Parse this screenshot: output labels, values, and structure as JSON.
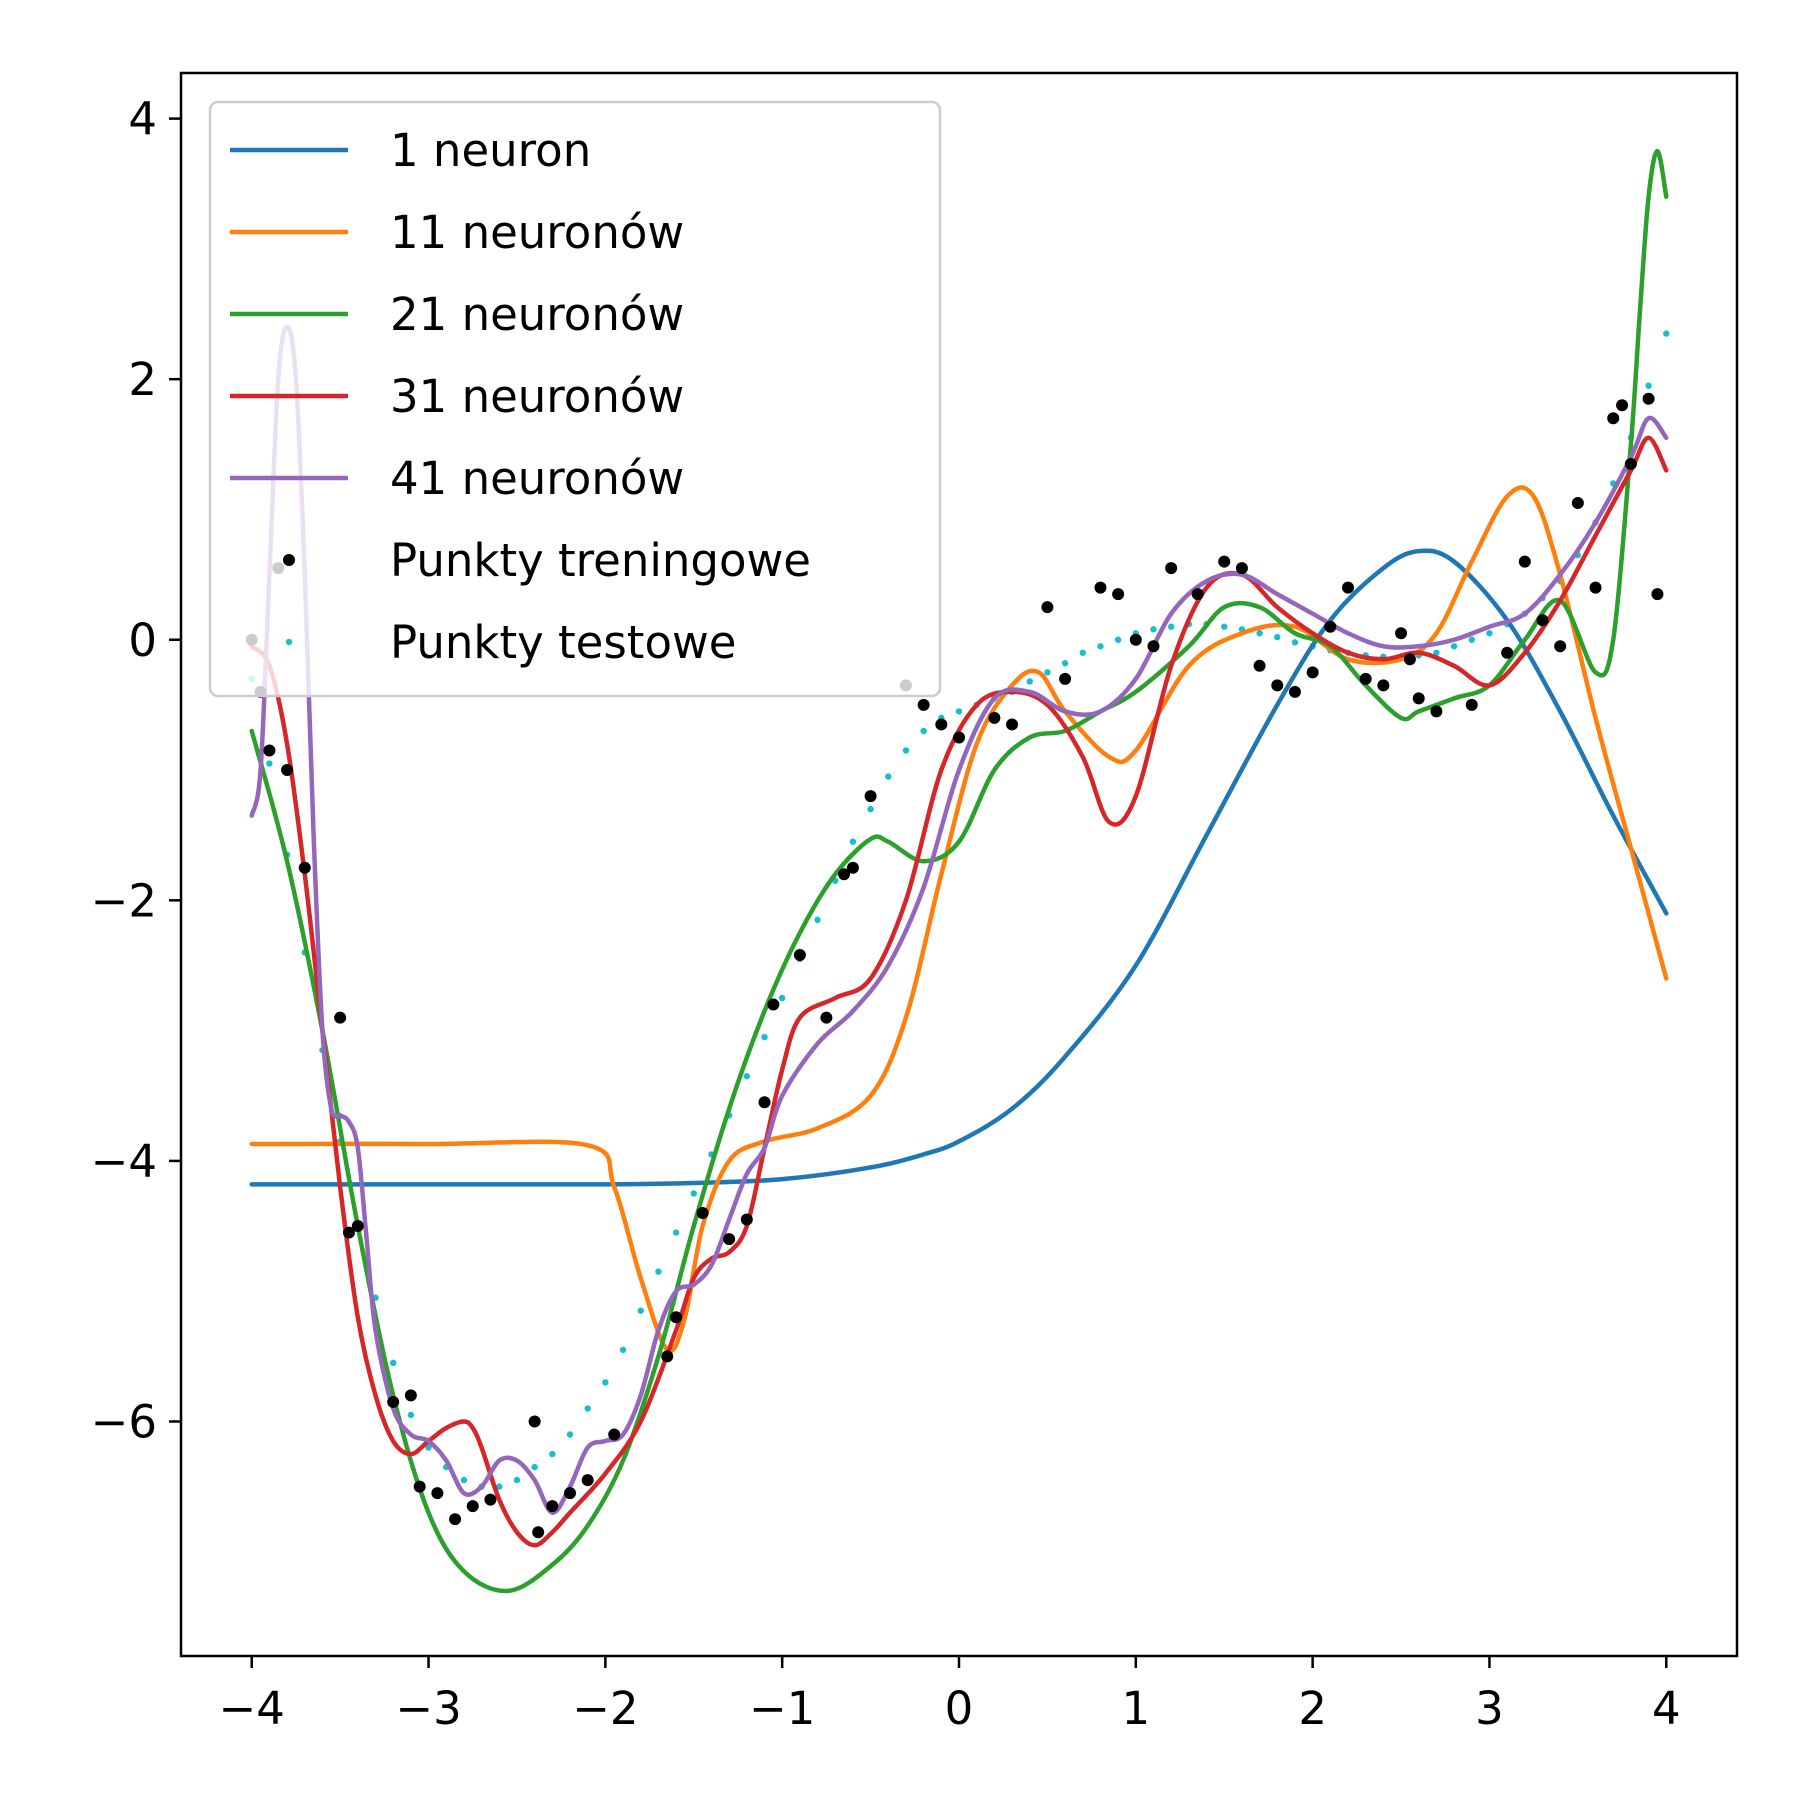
{
  "chart_data": {
    "type": "line",
    "title": "",
    "xlabel": "",
    "ylabel": "",
    "xlim": [
      -4.4,
      4.4
    ],
    "ylim": [
      -7.8,
      4.35
    ],
    "xticks": [
      -4,
      -3,
      -2,
      -1,
      0,
      1,
      2,
      3,
      4
    ],
    "yticks": [
      -6,
      -4,
      -2,
      0,
      2,
      4
    ],
    "xtick_labels": [
      "−4",
      "−3",
      "−2",
      "−1",
      "0",
      "1",
      "2",
      "3",
      "4"
    ],
    "ytick_labels": [
      "−6",
      "−4",
      "−2",
      "0",
      "2",
      "4"
    ],
    "grid": false,
    "legend_position": "top-left",
    "series": [
      {
        "name": "1 neuron",
        "color": "#1f77b4",
        "x": [
          -4.0,
          -3.0,
          -2.0,
          -1.5,
          -1.0,
          -0.5,
          -0.2,
          0.0,
          0.3,
          0.6,
          1.0,
          1.4,
          1.8,
          2.1,
          2.4,
          2.6,
          2.8,
          3.1,
          3.4,
          3.7,
          4.0
        ],
        "y": [
          -4.18,
          -4.18,
          -4.18,
          -4.17,
          -4.14,
          -4.05,
          -3.95,
          -3.85,
          -3.6,
          -3.2,
          -2.5,
          -1.5,
          -0.5,
          0.15,
          0.55,
          0.68,
          0.6,
          0.15,
          -0.55,
          -1.35,
          -2.1
        ]
      },
      {
        "name": "11 neuronów",
        "color": "#ff7f0e",
        "x": [
          -4.0,
          -3.0,
          -2.1,
          -1.95,
          -1.8,
          -1.65,
          -1.55,
          -1.45,
          -1.3,
          -1.1,
          -0.8,
          -0.5,
          -0.3,
          -0.1,
          0.1,
          0.3,
          0.45,
          0.6,
          0.85,
          1.0,
          1.3,
          1.6,
          1.9,
          2.2,
          2.5,
          2.7,
          2.9,
          3.1,
          3.25,
          3.4,
          3.6,
          3.8,
          4.0
        ],
        "y": [
          -3.87,
          -3.87,
          -3.88,
          -4.2,
          -4.9,
          -5.45,
          -5.2,
          -4.5,
          -4.0,
          -3.85,
          -3.75,
          -3.5,
          -2.9,
          -1.8,
          -0.8,
          -0.35,
          -0.25,
          -0.55,
          -0.9,
          -0.85,
          -0.2,
          0.05,
          0.1,
          -0.15,
          -0.15,
          0.05,
          0.6,
          1.1,
          1.1,
          0.5,
          -0.6,
          -1.6,
          -2.6
        ]
      },
      {
        "name": "21 neuronów",
        "color": "#2ca02c",
        "x": [
          -4.0,
          -3.8,
          -3.6,
          -3.4,
          -3.2,
          -3.0,
          -2.8,
          -2.55,
          -2.3,
          -2.1,
          -1.9,
          -1.7,
          -1.5,
          -1.3,
          -1.1,
          -0.9,
          -0.7,
          -0.5,
          -0.4,
          -0.2,
          0.0,
          0.2,
          0.4,
          0.6,
          0.8,
          1.0,
          1.3,
          1.5,
          1.7,
          1.9,
          2.1,
          2.3,
          2.5,
          2.6,
          2.8,
          3.0,
          3.2,
          3.4,
          3.6,
          3.7,
          3.8,
          3.85,
          3.9,
          3.95,
          4.0
        ],
        "y": [
          -0.7,
          -1.7,
          -3.0,
          -4.5,
          -5.8,
          -6.7,
          -7.15,
          -7.3,
          -7.1,
          -6.8,
          -6.3,
          -5.5,
          -4.5,
          -3.6,
          -2.85,
          -2.25,
          -1.8,
          -1.53,
          -1.55,
          -1.7,
          -1.55,
          -1.0,
          -0.75,
          -0.7,
          -0.55,
          -0.4,
          -0.05,
          0.25,
          0.25,
          0.05,
          -0.05,
          -0.35,
          -0.6,
          -0.55,
          -0.45,
          -0.35,
          0.0,
          0.3,
          -0.25,
          0.0,
          1.5,
          2.5,
          3.4,
          3.75,
          3.4
        ]
      },
      {
        "name": "31 neuronów",
        "color": "#d62728",
        "x": [
          -4.0,
          -3.9,
          -3.8,
          -3.7,
          -3.6,
          -3.5,
          -3.4,
          -3.3,
          -3.2,
          -3.1,
          -3.0,
          -2.9,
          -2.8,
          -2.75,
          -2.7,
          -2.6,
          -2.5,
          -2.4,
          -2.3,
          -2.2,
          -2.0,
          -1.8,
          -1.6,
          -1.5,
          -1.4,
          -1.3,
          -1.2,
          -1.1,
          -1.0,
          -0.9,
          -0.7,
          -0.5,
          -0.3,
          -0.1,
          0.1,
          0.3,
          0.5,
          0.7,
          0.85,
          1.0,
          1.2,
          1.4,
          1.6,
          1.8,
          2.0,
          2.2,
          2.4,
          2.6,
          2.8,
          3.0,
          3.2,
          3.4,
          3.6,
          3.8,
          3.9,
          4.0
        ],
        "y": [
          -0.05,
          -0.2,
          -0.8,
          -1.8,
          -3.0,
          -4.2,
          -5.2,
          -5.8,
          -6.15,
          -6.25,
          -6.15,
          -6.05,
          -6.0,
          -6.05,
          -6.2,
          -6.6,
          -6.85,
          -6.95,
          -6.85,
          -6.7,
          -6.4,
          -6.0,
          -5.3,
          -4.9,
          -4.75,
          -4.7,
          -4.5,
          -3.9,
          -3.3,
          -2.9,
          -2.75,
          -2.6,
          -2.0,
          -1.0,
          -0.5,
          -0.4,
          -0.5,
          -0.9,
          -1.4,
          -1.2,
          -0.2,
          0.4,
          0.5,
          0.25,
          0.05,
          -0.1,
          -0.15,
          -0.1,
          -0.2,
          -0.35,
          -0.1,
          0.3,
          0.8,
          1.3,
          1.55,
          1.3
        ]
      },
      {
        "name": "41 neuronów",
        "color": "#9467bd",
        "x": [
          -4.0,
          -3.95,
          -3.9,
          -3.85,
          -3.8,
          -3.75,
          -3.7,
          -3.65,
          -3.6,
          -3.55,
          -3.5,
          -3.45,
          -3.4,
          -3.35,
          -3.3,
          -3.2,
          -3.1,
          -3.0,
          -2.9,
          -2.8,
          -2.7,
          -2.6,
          -2.5,
          -2.4,
          -2.3,
          -2.2,
          -2.1,
          -2.0,
          -1.9,
          -1.8,
          -1.7,
          -1.6,
          -1.5,
          -1.4,
          -1.3,
          -1.2,
          -1.1,
          -1.0,
          -0.8,
          -0.6,
          -0.4,
          -0.2,
          0.0,
          0.2,
          0.4,
          0.6,
          0.8,
          1.0,
          1.2,
          1.4,
          1.6,
          1.8,
          2.0,
          2.2,
          2.4,
          2.6,
          2.8,
          3.0,
          3.2,
          3.4,
          3.6,
          3.8,
          3.9,
          4.0
        ],
        "y": [
          -1.35,
          -1.0,
          0.5,
          2.0,
          2.4,
          2.0,
          0.5,
          -1.5,
          -3.0,
          -3.6,
          -3.65,
          -3.7,
          -3.9,
          -4.6,
          -5.3,
          -5.9,
          -6.1,
          -6.15,
          -6.3,
          -6.55,
          -6.5,
          -6.3,
          -6.3,
          -6.45,
          -6.7,
          -6.5,
          -6.2,
          -6.15,
          -6.1,
          -5.8,
          -5.3,
          -5.0,
          -4.95,
          -4.8,
          -4.45,
          -4.1,
          -3.9,
          -3.5,
          -3.1,
          -2.85,
          -2.5,
          -1.9,
          -1.0,
          -0.45,
          -0.4,
          -0.55,
          -0.55,
          -0.3,
          0.2,
          0.45,
          0.5,
          0.35,
          0.2,
          0.05,
          -0.05,
          -0.05,
          0.0,
          0.1,
          0.2,
          0.5,
          0.9,
          1.4,
          1.7,
          1.55
        ]
      }
    ],
    "scatter_series": [
      {
        "name": "Punkty treningowe",
        "color": "#000000",
        "x": [
          -4.0,
          -3.95,
          -3.9,
          -3.85,
          -3.8,
          -3.7,
          -3.5,
          -3.45,
          -3.4,
          -3.2,
          -3.1,
          -3.05,
          -2.95,
          -2.85,
          -2.75,
          -2.65,
          -2.4,
          -2.38,
          -2.3,
          -2.2,
          -2.1,
          -1.95,
          -1.65,
          -1.6,
          -1.45,
          -1.3,
          -1.2,
          -1.1,
          -1.05,
          -0.9,
          -0.75,
          -0.65,
          -0.6,
          -0.5,
          -0.3,
          -0.2,
          -0.1,
          0.0,
          0.2,
          0.3,
          0.5,
          0.6,
          0.8,
          0.9,
          1.0,
          1.1,
          1.2,
          1.35,
          1.5,
          1.6,
          1.7,
          1.8,
          1.9,
          2.0,
          2.1,
          2.2,
          2.3,
          2.4,
          2.5,
          2.55,
          2.6,
          2.7,
          2.9,
          3.1,
          3.2,
          3.3,
          3.4,
          3.5,
          3.6,
          3.7,
          3.75,
          3.8,
          3.9,
          3.95
        ],
        "y": [
          0.0,
          -0.4,
          -0.85,
          0.55,
          -1.0,
          -1.75,
          -2.9,
          -4.55,
          -4.5,
          -5.85,
          -5.8,
          -6.5,
          -6.55,
          -6.75,
          -6.65,
          -6.6,
          -6.0,
          -6.85,
          -6.65,
          -6.55,
          -6.45,
          -6.1,
          -5.5,
          -5.2,
          -4.4,
          -4.6,
          -4.45,
          -3.55,
          -2.8,
          -2.42,
          -2.9,
          -1.8,
          -1.75,
          -1.2,
          -0.35,
          -0.5,
          -0.65,
          -0.75,
          -0.6,
          -0.65,
          0.25,
          -0.3,
          0.4,
          0.35,
          0.0,
          -0.05,
          0.55,
          0.35,
          0.6,
          0.55,
          -0.2,
          -0.35,
          -0.4,
          -0.25,
          0.1,
          0.4,
          -0.3,
          -0.35,
          0.05,
          -0.15,
          -0.45,
          -0.55,
          -0.5,
          -0.1,
          0.6,
          0.15,
          -0.05,
          1.05,
          0.4,
          1.7,
          1.8,
          1.35,
          1.85,
          0.35
        ]
      },
      {
        "name": "Punkty testowe",
        "color": "#17becf",
        "x": [
          -4.0,
          -3.9,
          -3.8,
          -3.7,
          -3.6,
          -3.5,
          -3.4,
          -3.3,
          -3.2,
          -3.1,
          -3.0,
          -2.9,
          -2.8,
          -2.7,
          -2.6,
          -2.5,
          -2.4,
          -2.3,
          -2.2,
          -2.1,
          -2.0,
          -1.9,
          -1.8,
          -1.7,
          -1.6,
          -1.5,
          -1.4,
          -1.3,
          -1.2,
          -1.1,
          -1.0,
          -0.9,
          -0.8,
          -0.7,
          -0.6,
          -0.5,
          -0.4,
          -0.3,
          -0.2,
          -0.1,
          0.0,
          0.1,
          0.2,
          0.3,
          0.4,
          0.5,
          0.6,
          0.7,
          0.8,
          0.9,
          1.0,
          1.1,
          1.2,
          1.3,
          1.4,
          1.5,
          1.6,
          1.7,
          1.8,
          1.9,
          2.0,
          2.1,
          2.2,
          2.3,
          2.4,
          2.5,
          2.6,
          2.7,
          2.8,
          2.9,
          3.0,
          3.1,
          3.2,
          3.3,
          3.4,
          3.5,
          3.6,
          3.7,
          3.8,
          3.9,
          4.0
        ],
        "y": [
          -0.3,
          -0.95,
          -1.65,
          -2.4,
          -3.15,
          -3.85,
          -4.5,
          -5.05,
          -5.55,
          -5.95,
          -6.2,
          -6.35,
          -6.45,
          -6.5,
          -6.5,
          -6.45,
          -6.35,
          -6.25,
          -6.1,
          -5.9,
          -5.7,
          -5.45,
          -5.15,
          -4.85,
          -4.55,
          -4.25,
          -3.95,
          -3.65,
          -3.35,
          -3.05,
          -2.75,
          -2.45,
          -2.15,
          -1.85,
          -1.55,
          -1.3,
          -1.05,
          -0.85,
          -0.7,
          -0.6,
          -0.55,
          -0.5,
          -0.45,
          -0.4,
          -0.32,
          -0.25,
          -0.18,
          -0.1,
          -0.05,
          0.0,
          0.05,
          0.08,
          0.1,
          0.12,
          0.12,
          0.1,
          0.08,
          0.05,
          0.02,
          -0.02,
          -0.05,
          -0.08,
          -0.1,
          -0.12,
          -0.13,
          -0.13,
          -0.12,
          -0.1,
          -0.05,
          0.0,
          0.05,
          0.12,
          0.2,
          0.32,
          0.45,
          0.65,
          0.9,
          1.2,
          1.55,
          1.95,
          2.35
        ]
      }
    ],
    "legend": [
      {
        "label": "1 neuron",
        "kind": "line",
        "color": "#1f77b4"
      },
      {
        "label": "11 neuronów",
        "kind": "line",
        "color": "#ff7f0e"
      },
      {
        "label": "21 neuronów",
        "kind": "line",
        "color": "#2ca02c"
      },
      {
        "label": "31 neuronów",
        "kind": "line",
        "color": "#d62728"
      },
      {
        "label": "41 neuronów",
        "kind": "line",
        "color": "#9467bd"
      },
      {
        "label": "Punkty treningowe",
        "kind": "marker",
        "color": "#000000"
      },
      {
        "label": "Punkty testowe",
        "kind": "marker",
        "color": "#17becf"
      }
    ]
  }
}
